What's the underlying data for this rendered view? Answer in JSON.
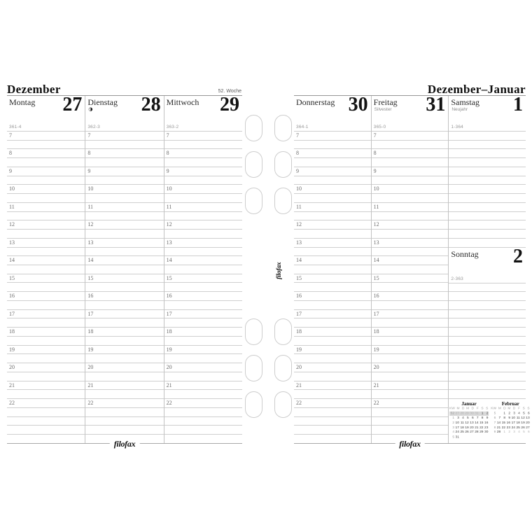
{
  "left_page": {
    "title": "Dezember",
    "week_label": "52. Woche",
    "brand": "filofax",
    "columns": [
      {
        "day": "Montag",
        "date": "27",
        "doy": "361-4"
      },
      {
        "day": "Dienstag",
        "date": "28",
        "doy": "362-3",
        "moon": "◑"
      },
      {
        "day": "Mittwoch",
        "date": "29",
        "doy": "363-2"
      }
    ]
  },
  "right_page": {
    "title": "Dezember–Januar",
    "brand": "filofax",
    "gutter_brand": "filofax",
    "columns": [
      {
        "day": "Donnerstag",
        "date": "30",
        "doy": "364-1"
      },
      {
        "day": "Freitag",
        "date": "31",
        "subtitle": "Silvester",
        "doy": "365-0"
      },
      {
        "day": "Samstag",
        "date": "1",
        "subtitle": "Neujahr",
        "doy": "1-364",
        "sunday": {
          "day": "Sonntag",
          "date": "2",
          "doy": "2-363"
        }
      }
    ]
  },
  "hours": [
    "7",
    "8",
    "9",
    "10",
    "11",
    "12",
    "13",
    "14",
    "15",
    "16",
    "17",
    "18",
    "19",
    "20",
    "21",
    "22"
  ],
  "mini_calendars": [
    {
      "title": "Januar",
      "header": [
        "KW",
        "M",
        "D",
        "M",
        "D",
        "F",
        "S",
        "S"
      ],
      "rows": [
        {
          "kw": "52",
          "days": [
            "27",
            "28",
            "29",
            "30",
            "31",
            "1",
            "2"
          ],
          "highlight": true,
          "gray": [
            0,
            1,
            2,
            3,
            4
          ]
        },
        {
          "kw": "1",
          "days": [
            "3",
            "4",
            "5",
            "6",
            "7",
            "8",
            "9"
          ]
        },
        {
          "kw": "2",
          "days": [
            "10",
            "11",
            "12",
            "13",
            "14",
            "15",
            "16"
          ]
        },
        {
          "kw": "3",
          "days": [
            "17",
            "18",
            "19",
            "20",
            "21",
            "22",
            "23"
          ]
        },
        {
          "kw": "4",
          "days": [
            "24",
            "25",
            "26",
            "27",
            "28",
            "29",
            "30"
          ]
        },
        {
          "kw": "5",
          "days": [
            "31",
            "",
            "",
            "",
            "",
            "",
            ""
          ]
        }
      ]
    },
    {
      "title": "Februar",
      "header": [
        "KW",
        "M",
        "D",
        "M",
        "D",
        "F",
        "S",
        "S"
      ],
      "rows": [
        {
          "kw": "5",
          "days": [
            "",
            "1",
            "2",
            "3",
            "4",
            "5",
            "6"
          ]
        },
        {
          "kw": "6",
          "days": [
            "7",
            "8",
            "9",
            "10",
            "11",
            "12",
            "13"
          ]
        },
        {
          "kw": "7",
          "days": [
            "14",
            "15",
            "16",
            "17",
            "18",
            "19",
            "20"
          ]
        },
        {
          "kw": "8",
          "days": [
            "21",
            "22",
            "23",
            "24",
            "25",
            "26",
            "27"
          ]
        },
        {
          "kw": "9",
          "days": [
            "28",
            "1",
            "2",
            "3",
            "4",
            "5",
            "6"
          ],
          "gray": [
            1,
            2,
            3,
            4,
            5,
            6
          ]
        }
      ]
    }
  ]
}
